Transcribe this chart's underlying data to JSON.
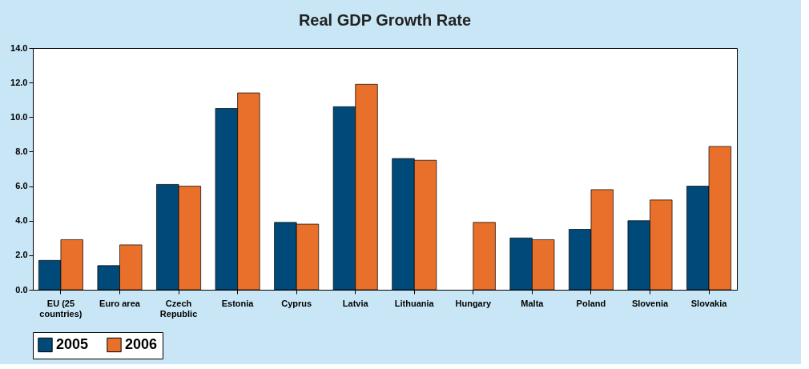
{
  "chart_data": {
    "type": "bar",
    "title": "Real GDP Growth Rate",
    "categories": [
      "EU (25\ncountries)",
      "Euro area",
      "Czech\nRepublic",
      "Estonia",
      "Cyprus",
      "Latvia",
      "Lithuania",
      "Hungary",
      "Malta",
      "Poland",
      "Slovenia",
      "Slovakia"
    ],
    "series": [
      {
        "name": "2005",
        "color": "#004a7a",
        "values": [
          1.7,
          1.4,
          6.1,
          10.5,
          3.9,
          10.6,
          7.6,
          null,
          3.0,
          3.5,
          4.0,
          6.0
        ]
      },
      {
        "name": "2006",
        "color": "#e8702a",
        "values": [
          2.9,
          2.6,
          6.0,
          11.4,
          3.8,
          11.9,
          7.5,
          3.9,
          2.9,
          5.8,
          5.2,
          8.3
        ]
      }
    ],
    "ylim": [
      0,
      14
    ],
    "yticks": [
      {
        "value": 0,
        "label": "0.0"
      },
      {
        "value": 2,
        "label": "2.0"
      },
      {
        "value": 4,
        "label": "4.0"
      },
      {
        "value": 6,
        "label": "6.0"
      },
      {
        "value": 8,
        "label": "8.0"
      },
      {
        "value": 10,
        "label": "10.0"
      },
      {
        "value": 12,
        "label": "12.0"
      },
      {
        "value": 14,
        "label": "14.0"
      }
    ],
    "grid": false,
    "legend": "bottom"
  }
}
